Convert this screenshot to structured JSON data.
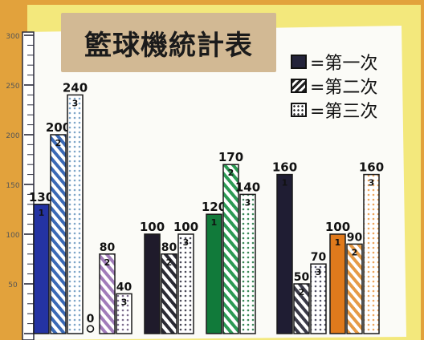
{
  "chart_data": {
    "type": "bar",
    "title": "籃球機統計表",
    "xlabel": "",
    "ylabel": "",
    "ylim": [
      0,
      300
    ],
    "yticks": [
      50,
      100,
      150,
      200,
      250,
      300
    ],
    "grid": false,
    "legend_position": "top-right",
    "series": [
      {
        "name": "=第一次",
        "pattern": "solid"
      },
      {
        "name": "=第二次",
        "pattern": "hatch"
      },
      {
        "name": "=第三次",
        "pattern": "dots"
      }
    ],
    "groups": [
      {
        "bars": [
          {
            "value": 130,
            "label": "130",
            "mark": "1",
            "color": "#2433a3",
            "pattern": "solid"
          },
          {
            "value": 200,
            "label": "200",
            "mark": "2",
            "color": "#3a69b5",
            "pattern": "hatch"
          },
          {
            "value": 240,
            "label": "240",
            "mark": "3",
            "color": "#7fa6c8",
            "pattern": "dots"
          }
        ]
      },
      {
        "bars": [
          {
            "value": 0,
            "label": "0",
            "mark": "",
            "color": "#111111",
            "pattern": "solid"
          },
          {
            "value": 80,
            "label": "80",
            "mark": "2",
            "color": "#a17cb9",
            "pattern": "hatch"
          },
          {
            "value": 40,
            "label": "40",
            "mark": "3",
            "color": "#7d6d8e",
            "pattern": "dots"
          }
        ]
      },
      {
        "bars": [
          {
            "value": 100,
            "label": "100",
            "mark": "",
            "color": "#1f1b2b",
            "pattern": "solid"
          },
          {
            "value": 80,
            "label": "80",
            "mark": "2",
            "color": "#2a2a33",
            "pattern": "hatch"
          },
          {
            "value": 100,
            "label": "100",
            "mark": "3",
            "color": "#4a4a58",
            "pattern": "dots"
          }
        ]
      },
      {
        "bars": [
          {
            "value": 120,
            "label": "120",
            "mark": "1",
            "color": "#117a3a",
            "pattern": "solid"
          },
          {
            "value": 170,
            "label": "170",
            "mark": "2",
            "color": "#2c9a54",
            "pattern": "hatch"
          },
          {
            "value": 140,
            "label": "140",
            "mark": "3",
            "color": "#3c8a5a",
            "pattern": "dots"
          }
        ]
      },
      {
        "bars": [
          {
            "value": 160,
            "label": "160",
            "mark": "1",
            "color": "#1f1d33",
            "pattern": "solid"
          },
          {
            "value": 50,
            "label": "50",
            "mark": "2",
            "color": "#3a3a48",
            "pattern": "hatch"
          },
          {
            "value": 70,
            "label": "70",
            "mark": "3",
            "color": "#55556a",
            "pattern": "dots"
          }
        ]
      },
      {
        "bars": [
          {
            "value": 100,
            "label": "100",
            "mark": "1",
            "color": "#e07a1c",
            "pattern": "solid"
          },
          {
            "value": 90,
            "label": "90",
            "mark": "2",
            "color": "#e59a46",
            "pattern": "hatch"
          },
          {
            "value": 160,
            "label": "160",
            "mark": "3",
            "color": "#eda65e",
            "pattern": "dots"
          }
        ]
      }
    ]
  }
}
